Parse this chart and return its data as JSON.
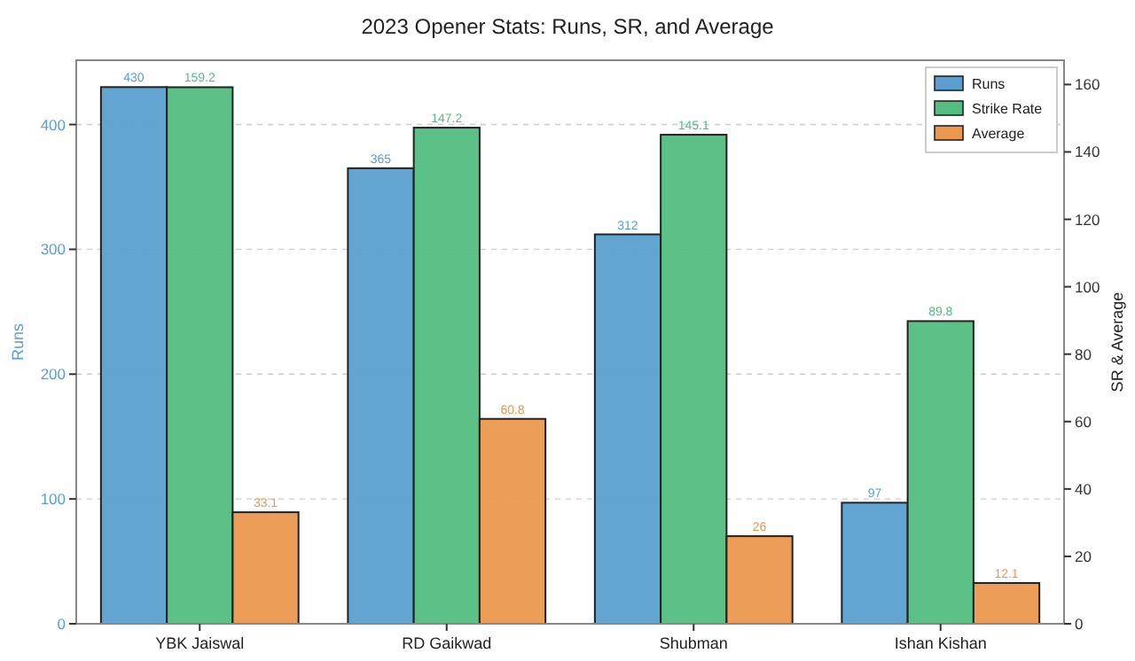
{
  "chart_data": {
    "type": "bar",
    "title": "2023 Opener Stats: Runs, SR, and Average",
    "ylabel": "Runs",
    "y2label": "SR & Average",
    "categories": [
      "YBK Jaiswal",
      "RD Gaikwad",
      "Shubman",
      "Ishan Kishan"
    ],
    "series": [
      {
        "name": "Runs",
        "color": "#5a9fd0",
        "values": [
          430,
          365,
          312,
          97
        ]
      },
      {
        "name": "Strike Rate",
        "color": "#52be80",
        "values": [
          159.2,
          147.2,
          145.1,
          89.8
        ],
        "axis": "y2"
      },
      {
        "name": "Average",
        "color": "#eb984e",
        "values": [
          33.1,
          60.8,
          26,
          12.1
        ],
        "axis": "y2"
      }
    ],
    "ylim": [
      0,
      451.5
    ],
    "yticks": [
      0,
      100,
      200,
      300,
      400
    ],
    "y2lim": [
      0,
      167.2
    ],
    "y2ticks": [
      0,
      20,
      40,
      60,
      80,
      100,
      120,
      140,
      160
    ],
    "grid": "y",
    "legend": "top right",
    "data_labels": true
  }
}
